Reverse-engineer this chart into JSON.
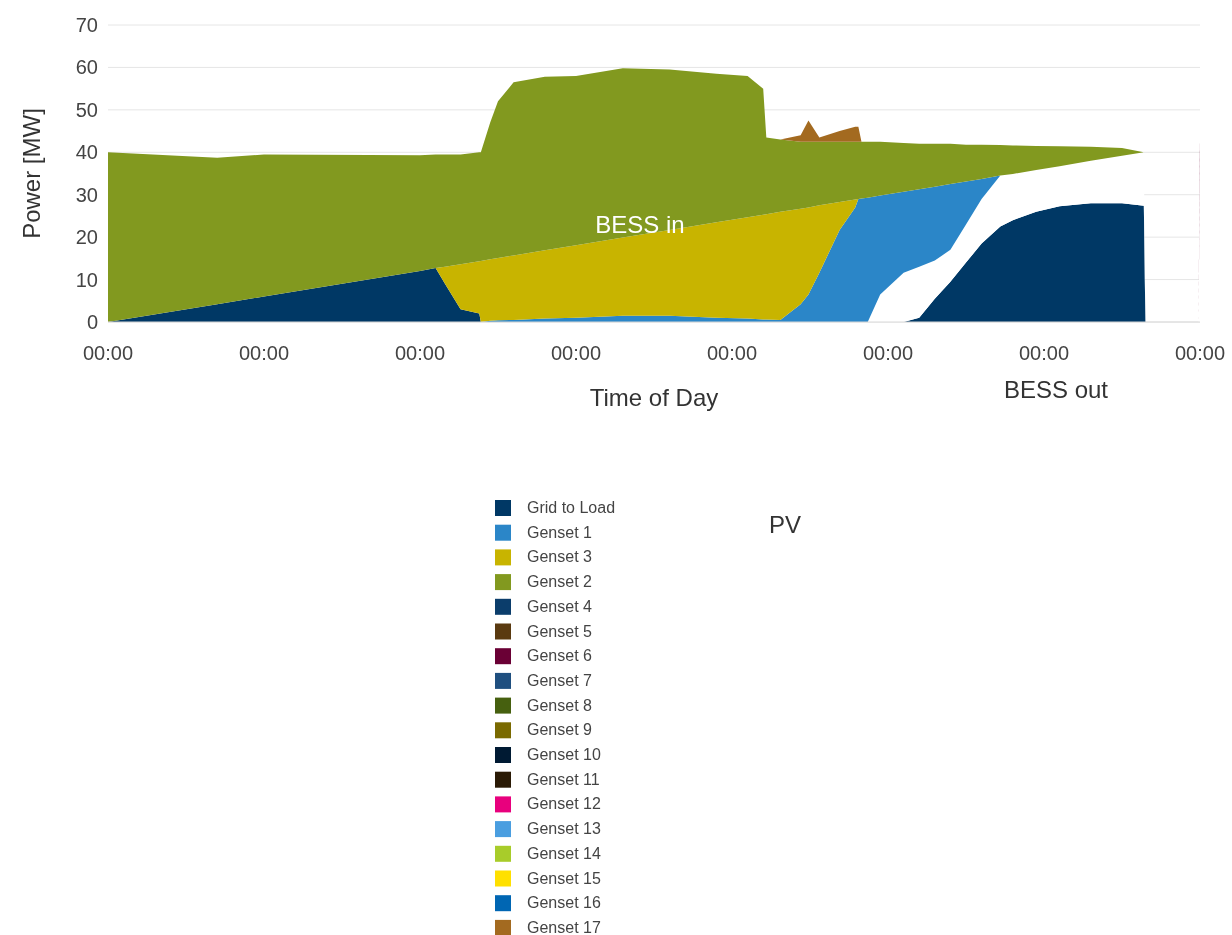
{
  "chart_data": {
    "type": "area",
    "stacked": true,
    "ylabel": "Power [MW]",
    "xlabel": "Time of Day",
    "annotations": [
      "BESS in",
      "BESS out",
      "PV"
    ],
    "xlim": [
      0,
      7
    ],
    "xticks": [
      {
        "value": 0,
        "label": "00:00"
      },
      {
        "value": 1,
        "label": "00:00"
      },
      {
        "value": 2,
        "label": "00:00"
      },
      {
        "value": 3,
        "label": "00:00"
      },
      {
        "value": 4,
        "label": "00:00"
      },
      {
        "value": 5,
        "label": "00:00"
      },
      {
        "value": 6,
        "label": "00:00"
      },
      {
        "value": 7,
        "label": "00:00"
      }
    ],
    "ylim": [
      0,
      70
    ],
    "yticks": [
      0,
      10,
      20,
      30,
      40,
      50,
      60,
      70
    ],
    "grid": "y",
    "legend": "bottom",
    "x": [
      0,
      0.7,
      1,
      2,
      2.1,
      2.16,
      2.26,
      2.38,
      2.39,
      2.45,
      2.5,
      2.6,
      2.8,
      3,
      3.3,
      3.6,
      3.9,
      4.1,
      4.2,
      4.22,
      4.31,
      4.44,
      4.49,
      4.56,
      4.69,
      4.79,
      4.81,
      4.83,
      4.87,
      4.95,
      5.1,
      5.2,
      5.3,
      5.4,
      5.5,
      5.6,
      5.72,
      5.8,
      5.95,
      6.1,
      6.3,
      6.5,
      6.64,
      6.65,
      6.99,
      7
    ],
    "series": [
      {
        "name": "Grid to Load",
        "color": "#003865",
        "values": [
          0,
          4.2,
          6.0,
          12.0,
          12.7,
          9,
          3,
          2,
          0,
          null,
          null,
          null,
          null,
          null,
          null,
          null,
          null,
          null,
          null,
          null,
          null,
          null,
          null,
          null,
          null,
          null,
          null,
          null,
          null,
          null,
          0,
          1,
          5.5,
          9.5,
          14,
          18.5,
          22.5,
          24,
          26,
          27.3,
          28,
          28,
          27.4,
          0,
          null,
          null
        ]
      },
      {
        "color": "#ffffff",
        "values": [
          null,
          null,
          null,
          null,
          null,
          null,
          null,
          null,
          null,
          null,
          null,
          null,
          null,
          null,
          null,
          null,
          null,
          null,
          null,
          null,
          null,
          null,
          null,
          null,
          null,
          null,
          null,
          null,
          0,
          6.5,
          11.6,
          12,
          9,
          7.5,
          9,
          10.5,
          12,
          10.9,
          9.8,
          9.4,
          10,
          11.2,
          12.6,
          0,
          0,
          38.7
        ]
      },
      {
        "name": "Genset 1",
        "color": "#2b86c8",
        "values": [
          null,
          null,
          null,
          null,
          null,
          null,
          null,
          null,
          0,
          0.3,
          0.4,
          0.5,
          0.8,
          1,
          1.5,
          1.5,
          1,
          0.8,
          0.6,
          0.6,
          0.5,
          4.2,
          6.5,
          11.6,
          21.7,
          27,
          29.0,
          29.1,
          29.3,
          23.3,
          19.1,
          18.3,
          17.4,
          15.5,
          10.1,
          4.7,
          0,
          null,
          null,
          null,
          null,
          null,
          null,
          null,
          null,
          null
        ]
      },
      {
        "name": "Genset 3",
        "color": "#c8b400",
        "values": [
          null,
          null,
          null,
          null,
          0,
          4,
          10.6,
          12.3,
          14.4,
          14.5,
          14.7,
          15.2,
          16.1,
          17.1,
          18.4,
          20.2,
          22.5,
          23.9,
          24.7,
          24.8,
          25.5,
          22.5,
          20.5,
          15.9,
          6.6,
          1.9,
          0,
          null,
          null,
          null,
          null,
          null,
          null,
          null,
          null,
          null,
          null,
          null,
          null,
          null,
          null,
          null,
          null,
          null,
          null,
          null
        ]
      },
      {
        "name": "Genset 2",
        "color": "#82991f",
        "values": [
          40,
          34.5,
          33.5,
          27.3,
          26.8,
          26.5,
          25.9,
          25.7,
          25.6,
          32.2,
          36.9,
          40.8,
          40.9,
          39.9,
          39.9,
          37.8,
          35,
          33.3,
          29.7,
          18.1,
          17,
          15.8,
          15.5,
          15,
          14.2,
          13.6,
          13.5,
          13.4,
          13.2,
          12.7,
          11.5,
          10.7,
          10.1,
          9.5,
          8.7,
          8.1,
          7.2,
          6.7,
          5.7,
          4.7,
          3.3,
          1.8,
          0,
          null,
          null,
          null
        ]
      },
      {
        "name": "Genset 4",
        "color": "#0b3d6b",
        "values": [
          null,
          null,
          null,
          null,
          null,
          null,
          null,
          null,
          null,
          null,
          null,
          null,
          null,
          null,
          null,
          null,
          null,
          null,
          null,
          null,
          null,
          null,
          null,
          null,
          null,
          null,
          null,
          null,
          null,
          null,
          null,
          null,
          null,
          null,
          null,
          null,
          null,
          null,
          null,
          null,
          null,
          null,
          null,
          null,
          null,
          null
        ]
      },
      {
        "name": "Genset 5",
        "color": "#5a3a10",
        "values": [
          null,
          null,
          null,
          null,
          null,
          null,
          null,
          null,
          null,
          null,
          null,
          null,
          null,
          null,
          null,
          null,
          null,
          null,
          null,
          null,
          null,
          null,
          null,
          null,
          null,
          null,
          null,
          null,
          null,
          null,
          null,
          null,
          null,
          null,
          null,
          null,
          null,
          null,
          null,
          null,
          null,
          null,
          null,
          null,
          null,
          null
        ]
      },
      {
        "name": "Genset 6",
        "color": "#6a0035",
        "values": [
          null,
          null,
          null,
          null,
          null,
          null,
          null,
          null,
          null,
          null,
          null,
          null,
          null,
          null,
          null,
          null,
          null,
          null,
          null,
          null,
          null,
          null,
          null,
          null,
          null,
          null,
          null,
          null,
          null,
          null,
          null,
          null,
          null,
          null,
          null,
          null,
          null,
          null,
          null,
          null,
          null,
          null,
          null,
          null,
          0,
          4.2
        ]
      },
      {
        "name": "Genset 7",
        "color": "#1f4f7f",
        "values": [
          null,
          null,
          null,
          null,
          null,
          null,
          null,
          null,
          null,
          null,
          null,
          null,
          null,
          null,
          null,
          null,
          null,
          null,
          null,
          null,
          null,
          null,
          null,
          null,
          null,
          null,
          null,
          null,
          null,
          null,
          null,
          null,
          null,
          null,
          null,
          null,
          null,
          null,
          null,
          null,
          null,
          null,
          null,
          null,
          null,
          null
        ]
      },
      {
        "name": "Genset 8",
        "color": "#46600f",
        "values": [
          null,
          null,
          null,
          null,
          null,
          null,
          null,
          null,
          null,
          null,
          null,
          null,
          null,
          null,
          null,
          null,
          null,
          null,
          null,
          null,
          null,
          null,
          null,
          null,
          null,
          null,
          null,
          null,
          null,
          null,
          null,
          null,
          null,
          null,
          null,
          null,
          null,
          null,
          null,
          null,
          null,
          null,
          null,
          null,
          null,
          null
        ]
      },
      {
        "name": "Genset 9",
        "color": "#7a6a00",
        "values": [
          null,
          null,
          null,
          null,
          null,
          null,
          null,
          null,
          null,
          null,
          null,
          null,
          null,
          null,
          null,
          null,
          null,
          null,
          null,
          null,
          null,
          null,
          null,
          null,
          null,
          null,
          null,
          null,
          null,
          null,
          null,
          null,
          null,
          null,
          null,
          null,
          null,
          null,
          null,
          null,
          null,
          null,
          null,
          null,
          null,
          null
        ]
      },
      {
        "name": "Genset 10",
        "color": "#001a33",
        "values": [
          null,
          null,
          null,
          null,
          null,
          null,
          null,
          null,
          null,
          null,
          null,
          null,
          null,
          null,
          null,
          null,
          null,
          null,
          null,
          null,
          null,
          null,
          null,
          null,
          null,
          null,
          null,
          null,
          null,
          null,
          null,
          null,
          null,
          null,
          null,
          null,
          null,
          null,
          null,
          null,
          null,
          null,
          null,
          null,
          null,
          null
        ]
      },
      {
        "name": "Genset 11",
        "color": "#2a1a05",
        "values": [
          null,
          null,
          null,
          null,
          null,
          null,
          null,
          null,
          null,
          null,
          null,
          null,
          null,
          null,
          null,
          null,
          null,
          null,
          null,
          null,
          null,
          null,
          null,
          null,
          null,
          null,
          null,
          null,
          null,
          null,
          null,
          null,
          null,
          null,
          null,
          null,
          null,
          null,
          null,
          null,
          null,
          null,
          null,
          null,
          null,
          null
        ]
      },
      {
        "name": "Genset 12",
        "color": "#e8007d",
        "values": [
          null,
          null,
          null,
          null,
          null,
          null,
          null,
          null,
          null,
          null,
          null,
          null,
          null,
          null,
          null,
          null,
          null,
          null,
          null,
          null,
          null,
          null,
          null,
          null,
          null,
          null,
          null,
          null,
          null,
          null,
          null,
          null,
          null,
          null,
          null,
          null,
          null,
          null,
          null,
          null,
          null,
          null,
          null,
          null,
          null,
          null
        ]
      },
      {
        "name": "Genset 13",
        "color": "#4a9ee0",
        "values": [
          null,
          null,
          null,
          null,
          null,
          null,
          null,
          null,
          null,
          null,
          null,
          null,
          null,
          null,
          null,
          null,
          null,
          null,
          null,
          null,
          null,
          null,
          null,
          null,
          null,
          null,
          null,
          null,
          null,
          null,
          null,
          null,
          null,
          null,
          null,
          null,
          null,
          null,
          null,
          null,
          null,
          null,
          null,
          null,
          null,
          null
        ]
      },
      {
        "name": "Genset 14",
        "color": "#a8cc2a",
        "values": [
          null,
          null,
          null,
          null,
          null,
          null,
          null,
          null,
          null,
          null,
          null,
          null,
          null,
          null,
          null,
          null,
          null,
          null,
          null,
          null,
          null,
          null,
          null,
          null,
          null,
          null,
          null,
          null,
          null,
          null,
          null,
          null,
          null,
          null,
          null,
          null,
          null,
          null,
          null,
          null,
          null,
          null,
          null,
          null,
          null,
          null
        ]
      },
      {
        "name": "Genset 15",
        "color": "#ffe000",
        "values": [
          null,
          null,
          null,
          null,
          null,
          null,
          null,
          null,
          null,
          null,
          null,
          null,
          null,
          null,
          null,
          null,
          null,
          null,
          null,
          null,
          null,
          null,
          null,
          null,
          null,
          null,
          null,
          null,
          null,
          null,
          null,
          null,
          null,
          null,
          null,
          null,
          null,
          null,
          null,
          null,
          null,
          null,
          null,
          null,
          null,
          null
        ]
      },
      {
        "name": "Genset 16",
        "color": "#0066b3",
        "values": [
          null,
          null,
          null,
          null,
          null,
          null,
          null,
          null,
          null,
          null,
          null,
          null,
          null,
          null,
          null,
          null,
          null,
          null,
          null,
          null,
          null,
          null,
          null,
          null,
          null,
          null,
          null,
          null,
          null,
          null,
          null,
          null,
          null,
          null,
          null,
          null,
          null,
          null,
          null,
          null,
          null,
          null,
          null,
          null,
          null,
          null
        ]
      },
      {
        "name": "Genset 17",
        "color": "#a36a20",
        "values": [
          null,
          null,
          null,
          null,
          null,
          null,
          null,
          null,
          null,
          null,
          null,
          null,
          null,
          null,
          null,
          null,
          null,
          null,
          null,
          null,
          0,
          1.5,
          5,
          1,
          2.5,
          3.5,
          3.5,
          0,
          null,
          null,
          null,
          null,
          null,
          null,
          null,
          null,
          null,
          null,
          null,
          null,
          null,
          null,
          null,
          null,
          null,
          null
        ]
      }
    ]
  }
}
